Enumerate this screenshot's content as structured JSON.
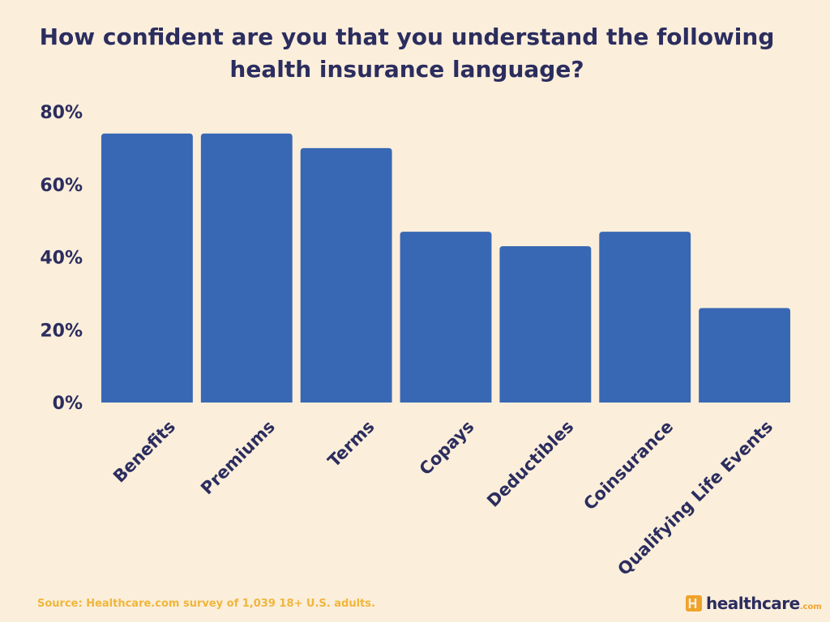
{
  "colors": {
    "background": "#fbeedb",
    "bar": "#3868b3",
    "text": "#2b2d5e",
    "accent": "#f0b63a"
  },
  "chart_data": {
    "type": "bar",
    "title": "How confident are you that you understand the following health insurance language?",
    "categories": [
      "Benefits",
      "Premiums",
      "Terms",
      "Copays",
      "Deductibles",
      "Coinsurance",
      "Qualifying Life Events"
    ],
    "values": [
      74,
      74,
      70,
      47,
      43,
      47,
      26
    ],
    "y_ticks": [
      0,
      20,
      40,
      60,
      80
    ],
    "y_tick_labels": [
      "0%",
      "20%",
      "40%",
      "60%",
      "80%"
    ],
    "ylim": [
      0,
      80
    ],
    "xlabel": "",
    "ylabel": "",
    "grid": false,
    "legend": "none"
  },
  "footer": {
    "source": "Source: Healthcare.com survey of  1,039 18+ U.S. adults.",
    "logo_text": "healthcare",
    "logo_suffix": ".com"
  }
}
